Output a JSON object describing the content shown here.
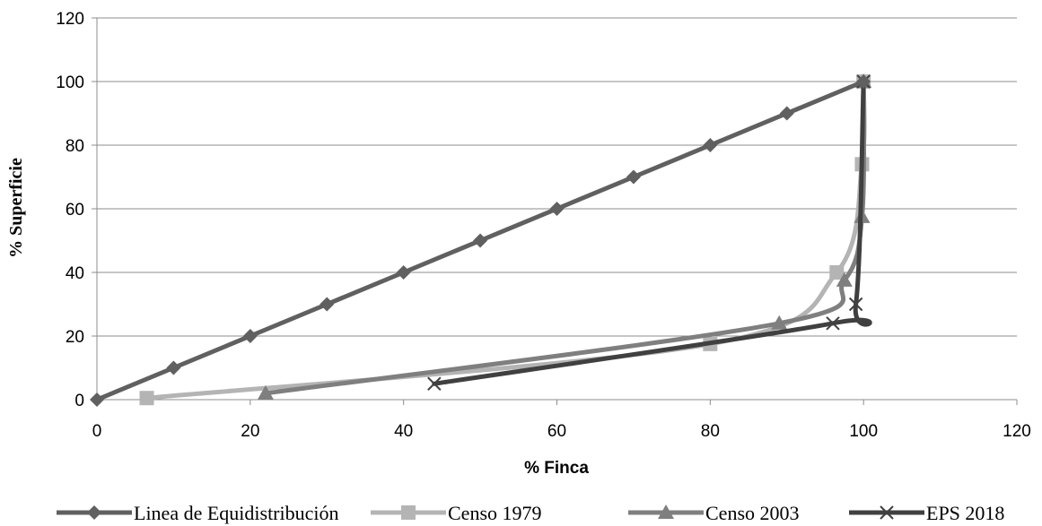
{
  "chart_data": {
    "type": "line",
    "xlabel": "% Finca",
    "ylabel": "% Superficie",
    "xlim": [
      0,
      120
    ],
    "ylim": [
      0,
      120
    ],
    "xticks": [
      "0",
      "20",
      "40",
      "60",
      "80",
      "100",
      "120"
    ],
    "yticks": [
      "0",
      "20",
      "40",
      "60",
      "80",
      "100",
      "120"
    ],
    "grid": "horizontal",
    "legend_position": "bottom",
    "series": [
      {
        "name": "Linea de Equidistribución",
        "color": "#606060",
        "marker": "diamond",
        "smooth": false,
        "points": [
          [
            0,
            0
          ],
          [
            10,
            10
          ],
          [
            20,
            20
          ],
          [
            30,
            30
          ],
          [
            40,
            40
          ],
          [
            50,
            50
          ],
          [
            60,
            60
          ],
          [
            70,
            70
          ],
          [
            80,
            80
          ],
          [
            90,
            90
          ],
          [
            100,
            100
          ]
        ]
      },
      {
        "name": "Censo 1979",
        "color": "#b4b4b4",
        "marker": "square",
        "smooth": true,
        "points": [
          [
            6.5,
            0.5
          ],
          [
            80,
            17.5
          ],
          [
            96.5,
            40
          ],
          [
            99.8,
            74
          ],
          [
            100,
            100
          ]
        ]
      },
      {
        "name": "Censo 2003",
        "color": "#7f7f7f",
        "marker": "triangle",
        "smooth": true,
        "points": [
          [
            22,
            2
          ],
          [
            89,
            24
          ],
          [
            97.5,
            37.5
          ],
          [
            99.8,
            57.5
          ],
          [
            100,
            100
          ]
        ]
      },
      {
        "name": "EPS 2018",
        "color": "#404040",
        "marker": "x",
        "smooth": true,
        "points": [
          [
            44,
            5
          ],
          [
            96,
            24
          ],
          [
            99,
            30
          ],
          [
            100,
            100
          ]
        ]
      }
    ]
  }
}
